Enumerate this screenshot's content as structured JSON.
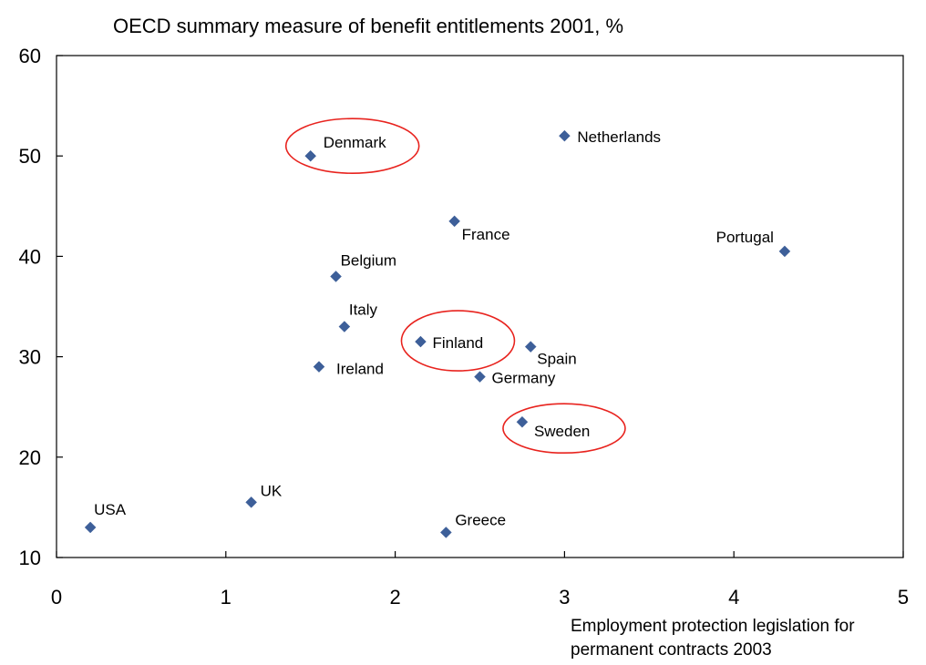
{
  "chart_data": {
    "type": "scatter",
    "title": "OECD summary measure of benefit entitlements 2001, %",
    "xlabel_lines": [
      "Employment protection legislation for",
      "permanent contracts 2003"
    ],
    "xlim": [
      0,
      5
    ],
    "ylim": [
      10,
      60
    ],
    "xticks": [
      "0",
      "1",
      "2",
      "3",
      "4",
      "5"
    ],
    "yticks": [
      "10",
      "20",
      "30",
      "40",
      "50",
      "60"
    ],
    "grid": false,
    "marker": "diamond",
    "marker_color": "#3D5F99",
    "highlight_color": "#E8231E",
    "highlighted": [
      "Denmark",
      "Finland",
      "Sweden"
    ],
    "points": [
      {
        "label": "USA",
        "x": 0.2,
        "y": 13
      },
      {
        "label": "UK",
        "x": 1.15,
        "y": 15.5
      },
      {
        "label": "Ireland",
        "x": 1.55,
        "y": 29
      },
      {
        "label": "Denmark",
        "x": 1.5,
        "y": 50
      },
      {
        "label": "Belgium",
        "x": 1.65,
        "y": 38
      },
      {
        "label": "Italy",
        "x": 1.7,
        "y": 33
      },
      {
        "label": "Finland",
        "x": 2.15,
        "y": 31.5
      },
      {
        "label": "France",
        "x": 2.35,
        "y": 43.5
      },
      {
        "label": "Greece",
        "x": 2.3,
        "y": 12.5
      },
      {
        "label": "Germany",
        "x": 2.5,
        "y": 28
      },
      {
        "label": "Sweden",
        "x": 2.75,
        "y": 23.5
      },
      {
        "label": "Spain",
        "x": 2.8,
        "y": 31
      },
      {
        "label": "Netherlands",
        "x": 3.0,
        "y": 52
      },
      {
        "label": "Portugal",
        "x": 4.3,
        "y": 40.5
      }
    ]
  }
}
